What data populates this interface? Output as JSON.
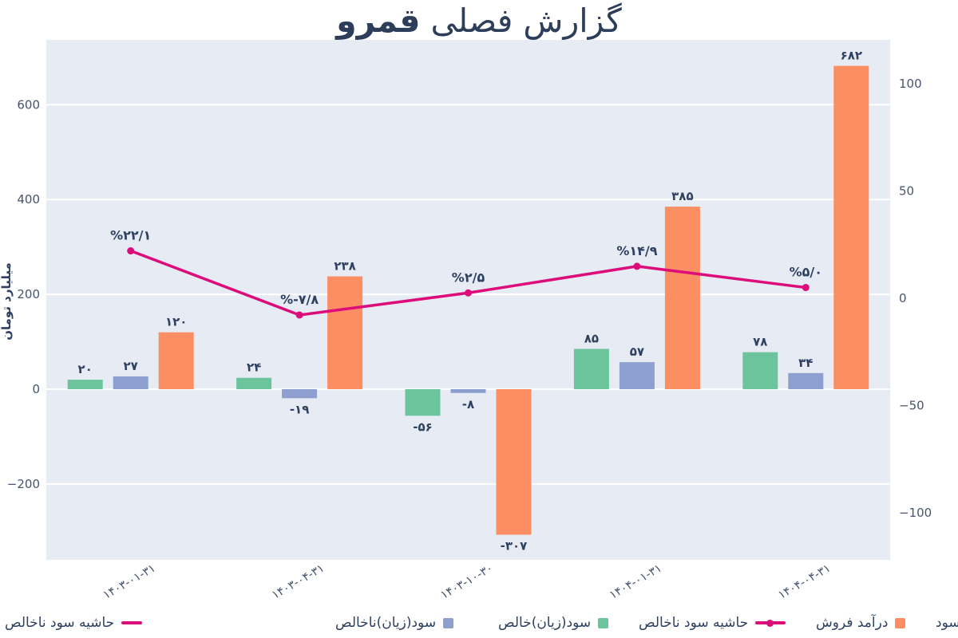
{
  "title": {
    "prefix": "گزارش فصلی",
    "company": "قمرو"
  },
  "colors": {
    "plot_bg": "#e7ebf4",
    "grid": "#ffffff",
    "title_text": "#2c3e5a",
    "label_text": "#2e4160",
    "tick_text": "#46556d",
    "net": "#6cc49c",
    "gross": "#8d9fce",
    "revenue": "#fb8e62",
    "margin": "#dc0c7b"
  },
  "chart_data": {
    "type": "bar",
    "title": "گزارش فصلی قمرو",
    "categories": [
      "۱۴۰۳-۰۱-۳۱",
      "۱۴۰۳-۰۴-۳۱",
      "۱۴۰۳-۱۰-۳۰",
      "۱۴۰۴-۰۱-۳۱",
      "۱۴۰۴-۰۴-۳۱"
    ],
    "series": [
      {
        "name": "سود(زیان)خالص",
        "type": "bar",
        "axis": "left",
        "color": "#6cc49c",
        "values": [
          20,
          24,
          -56,
          85,
          78
        ],
        "labels": [
          "۲۰",
          "۲۴",
          "-۵۶",
          "۸۵",
          "۷۸"
        ]
      },
      {
        "name": "سود(زیان)ناخالص",
        "type": "bar",
        "axis": "left",
        "color": "#8d9fce",
        "values": [
          27,
          -19,
          -8,
          57,
          34
        ],
        "labels": [
          "۲۷",
          "-۱۹",
          "-۸",
          "۵۷",
          "۳۴"
        ]
      },
      {
        "name": "درآمد فروش",
        "type": "bar",
        "axis": "left",
        "color": "#fb8e62",
        "values": [
          120,
          238,
          -307,
          385,
          682
        ],
        "labels": [
          "۱۲۰",
          "۲۳۸",
          "-۳۰۷",
          "۳۸۵",
          "۶۸۲"
        ]
      },
      {
        "name": "حاشیه سود ناخالص",
        "type": "line",
        "axis": "right",
        "color": "#dc0c7b",
        "values": [
          22.1,
          -7.8,
          2.5,
          14.9,
          5.0
        ],
        "labels": [
          "%۲۲/۱",
          "%-۷/۸",
          "%۲/۵",
          "%۱۴/۹",
          "%۵/۰"
        ]
      }
    ],
    "left_axis": {
      "title": "میلیارد تومان",
      "ticks": [
        "600",
        "400",
        "200",
        "0",
        "−200"
      ],
      "tick_values": [
        600,
        400,
        200,
        0,
        -200
      ],
      "range": [
        -360,
        737
      ]
    },
    "right_axis": {
      "title": "",
      "ticks": [
        "100",
        "50",
        "0",
        "−50",
        "−100"
      ],
      "tick_values": [
        100,
        50,
        0,
        -50,
        -100
      ],
      "range": [
        -121,
        121
      ]
    },
    "grid": true,
    "legend_position": "bottom"
  },
  "legend": {
    "entries": [
      {
        "key": "margin-fragment",
        "label": "حاشیه سود ناخالص",
        "symbol": "dash",
        "color": "#dc0c7b"
      },
      {
        "key": "gross-profit",
        "label": "سود(زیان)ناخالص",
        "symbol": "square",
        "color": "#8d9fce"
      },
      {
        "key": "net-profit",
        "label": "سود(زیان)خالص",
        "symbol": "square",
        "color": "#6cc49c"
      },
      {
        "key": "gross-margin",
        "label": "حاشیه سود ناخالص",
        "symbol": "line",
        "color": "#dc0c7b"
      },
      {
        "key": "revenue",
        "label": "درآمد فروش",
        "symbol": "square",
        "color": "#fb8e62"
      },
      {
        "key": "cut-fragment",
        "label": "سود",
        "symbol": "none",
        "color": ""
      }
    ]
  }
}
